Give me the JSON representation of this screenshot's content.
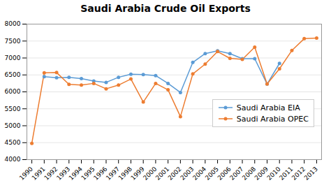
{
  "chart_data": {
    "type": "line",
    "title": "Saudi Arabia Crude Oil Exports",
    "x": [
      1990,
      1991,
      1992,
      1993,
      1994,
      1995,
      1996,
      1997,
      1998,
      1999,
      2000,
      2001,
      2002,
      2003,
      2004,
      2005,
      2006,
      2007,
      2008,
      2009,
      2010,
      2011,
      2012,
      2013
    ],
    "series": [
      {
        "name": "Saudi Arabia EIA",
        "color": "#5b9bd5",
        "values": [
          null,
          6450,
          6420,
          6430,
          6390,
          6320,
          6280,
          6430,
          6520,
          6510,
          6480,
          6250,
          5980,
          6870,
          7130,
          7210,
          7130,
          6980,
          6980,
          6230,
          6840,
          null,
          null,
          null
        ]
      },
      {
        "name": "Saudi Arabia OPEC",
        "color": "#ed7d31",
        "values": [
          4480,
          6560,
          6570,
          6220,
          6200,
          6250,
          6090,
          6200,
          6380,
          5700,
          6250,
          6060,
          5270,
          6530,
          6820,
          7190,
          6990,
          6960,
          7320,
          6230,
          6680,
          7220,
          7570,
          7590
        ]
      }
    ],
    "xlim": [
      1989.6,
      2013.4
    ],
    "xticks": [
      1990,
      1991,
      1992,
      1993,
      1994,
      1995,
      1996,
      1997,
      1998,
      1999,
      2000,
      2001,
      2002,
      2003,
      2004,
      2005,
      2006,
      2007,
      2008,
      2009,
      2010,
      2011,
      2012,
      2013
    ],
    "ylim": [
      4000,
      8000
    ],
    "yticks": [
      4000,
      4500,
      5000,
      5500,
      6000,
      6500,
      7000,
      7500,
      8000
    ],
    "grid": "y",
    "legend": "right",
    "marker": "circle"
  }
}
